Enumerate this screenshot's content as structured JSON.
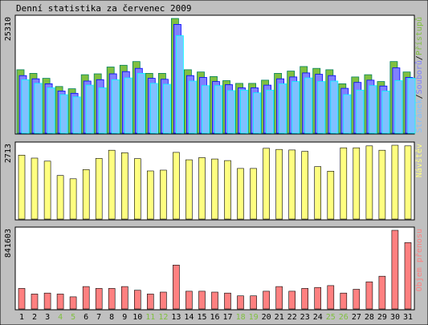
{
  "chart_data": {
    "type": "bar",
    "title": "Denní statistika za červenec 2009",
    "categories": [
      "1",
      "2",
      "3",
      "4",
      "5",
      "6",
      "7",
      "8",
      "9",
      "10",
      "11",
      "12",
      "13",
      "14",
      "15",
      "16",
      "17",
      "18",
      "19",
      "20",
      "21",
      "22",
      "23",
      "24",
      "25",
      "26",
      "27",
      "28",
      "29",
      "30",
      "31"
    ],
    "weekend_days": [
      "4",
      "5",
      "11",
      "12",
      "18",
      "19",
      "25",
      "26"
    ],
    "colors": {
      "background": "#c0c0c0",
      "panel": "#ffffff",
      "hits": "#00805c",
      "hits_fill": "#80c040",
      "files": "#0000ff",
      "files_fill": "#8080ff",
      "pages": "#00ffff",
      "pages_fill": "#80c0ff",
      "visits": "#ffff80",
      "kbytes": "#ff8080",
      "weekend_label": "#80c040"
    },
    "panels": [
      {
        "key": "traffic",
        "ylabel": "25310",
        "ymax": 25310,
        "legend": [
          {
            "text": "Stránek",
            "color": "#80c0ff"
          },
          {
            "text": "/",
            "color": "#000000"
          },
          {
            "text": "Souborů",
            "color": "#8080ff"
          },
          {
            "text": "/",
            "color": "#000000"
          },
          {
            "text": "Přístupů",
            "color": "#80c040"
          }
        ],
        "series": [
          {
            "name": "Přístupů",
            "values": [
              14000,
              13200,
              12100,
              10300,
              9800,
              12900,
              13100,
              14600,
              15000,
              15800,
              13200,
              13200,
              25310,
              14000,
              13500,
              12500,
              11600,
              11000,
              11000,
              11700,
              13200,
              13700,
              14700,
              14300,
              14000,
              10900,
              12400,
              12900,
              11400,
              15800,
              13500
            ]
          },
          {
            "name": "Souborů",
            "values": [
              12700,
              12000,
              10900,
              9300,
              8800,
              11500,
              11800,
              13100,
              13600,
              14300,
              12100,
              11900,
              24000,
              12700,
              12300,
              11400,
              10700,
              10000,
              10000,
              10600,
              12000,
              12400,
              13300,
              13000,
              12700,
              9900,
              11200,
              11700,
              10400,
              14400,
              12300
            ]
          },
          {
            "name": "Stránek",
            "values": [
              11800,
              11000,
              10000,
              8500,
              8000,
              10600,
              10000,
              11800,
              12200,
              13200,
              11000,
              10800,
              21500,
              11500,
              10500,
              10500,
              9400,
              9500,
              8900,
              9500,
              10900,
              11400,
              12200,
              11400,
              11500,
              8500,
              9500,
              10500,
              9300,
              11600,
              12100
            ]
          }
        ]
      },
      {
        "key": "visits",
        "ylabel": "2713",
        "ymax": 2713,
        "legend": [
          {
            "text": "Návštěv",
            "color": "#ffff80"
          }
        ],
        "series": [
          {
            "name": "Návštěv",
            "values": [
              2350,
              2240,
              2130,
              1600,
              1480,
              1820,
              2230,
              2530,
              2440,
              2220,
              1770,
              1800,
              2450,
              2180,
              2260,
              2210,
              2150,
              1860,
              1860,
              2600,
              2560,
              2540,
              2490,
              1930,
              1760,
              2620,
              2620,
              2690,
              2530,
              2713,
              2690
            ]
          }
        ]
      },
      {
        "key": "kbytes",
        "ylabel": "841603",
        "ymax": 841603,
        "legend": [
          {
            "text": "Objem přenosu",
            "color": "#ff8080"
          }
        ],
        "series": [
          {
            "name": "Objem přenosu",
            "values": [
              220000,
              160000,
              170000,
              160000,
              130000,
              240000,
              220000,
              220000,
              240000,
              200000,
              160000,
              180000,
              470000,
              190000,
              190000,
              180000,
              170000,
              140000,
              140000,
              190000,
              240000,
              190000,
              220000,
              230000,
              250000,
              170000,
              210000,
              290000,
              350000,
              841603,
              710000
            ]
          }
        ]
      }
    ]
  }
}
